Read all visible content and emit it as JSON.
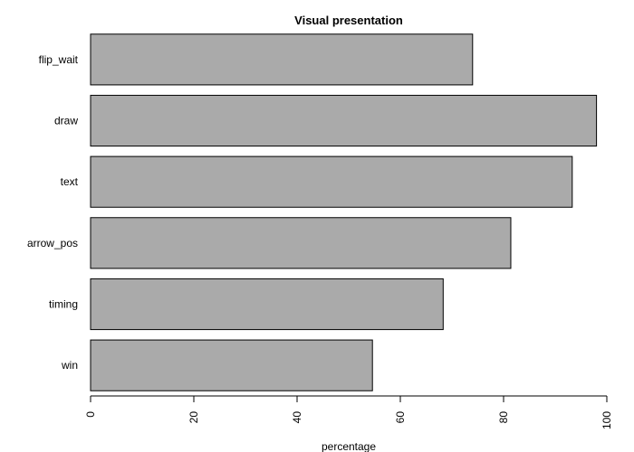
{
  "chart_data": {
    "type": "bar",
    "orientation": "horizontal",
    "title": "Visual presentation",
    "xlabel": "percentage",
    "ylabel": "",
    "categories": [
      "flip_wait",
      "draw",
      "text",
      "arrow_pos",
      "timing",
      "win"
    ],
    "values": [
      74,
      98,
      93.3,
      81.4,
      68.3,
      54.6
    ],
    "xlim": [
      0,
      100
    ],
    "xticks": [
      "0",
      "20",
      "40",
      "60",
      "80",
      "100"
    ],
    "grid": false,
    "legend": "none",
    "bar_color": "#aaaaaa",
    "bar_border_color": "#000000"
  }
}
